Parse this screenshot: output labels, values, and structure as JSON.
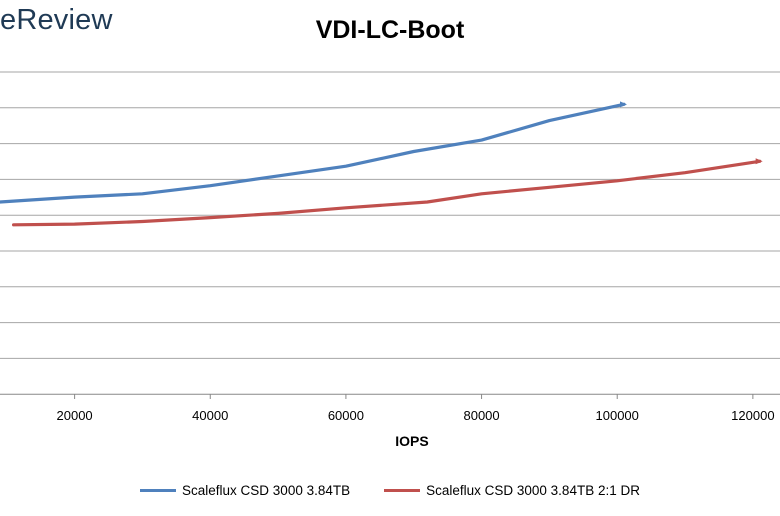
{
  "brand": "eReview",
  "chart_data": {
    "type": "line",
    "title": "VDI-LC-Boot",
    "xlabel": "IOPS",
    "ylabel": "",
    "x_ticks": [
      20000,
      40000,
      60000,
      80000,
      100000,
      120000
    ],
    "xlim": [
      9000,
      124000
    ],
    "ylim": [
      0,
      11
    ],
    "grid": "horizontal",
    "legend_position": "bottom",
    "series": [
      {
        "name": "Scaleflux CSD 3000 3.84TB",
        "color": "#4f81bd",
        "x": [
          9000,
          20000,
          30000,
          40000,
          50000,
          60000,
          70000,
          80000,
          90000,
          101000
        ],
        "y": [
          5.9,
          6.05,
          6.15,
          6.4,
          6.7,
          7.0,
          7.45,
          7.8,
          8.4,
          8.9
        ]
      },
      {
        "name": "Scaleflux CSD 3000 3.84TB 2:1 DR",
        "color": "#c0504d",
        "x": [
          11000,
          20000,
          30000,
          40000,
          50000,
          60000,
          72000,
          80000,
          90000,
          100000,
          110000,
          121000
        ],
        "y": [
          5.2,
          5.22,
          5.3,
          5.42,
          5.55,
          5.72,
          5.9,
          6.15,
          6.35,
          6.55,
          6.8,
          7.15
        ]
      }
    ]
  }
}
